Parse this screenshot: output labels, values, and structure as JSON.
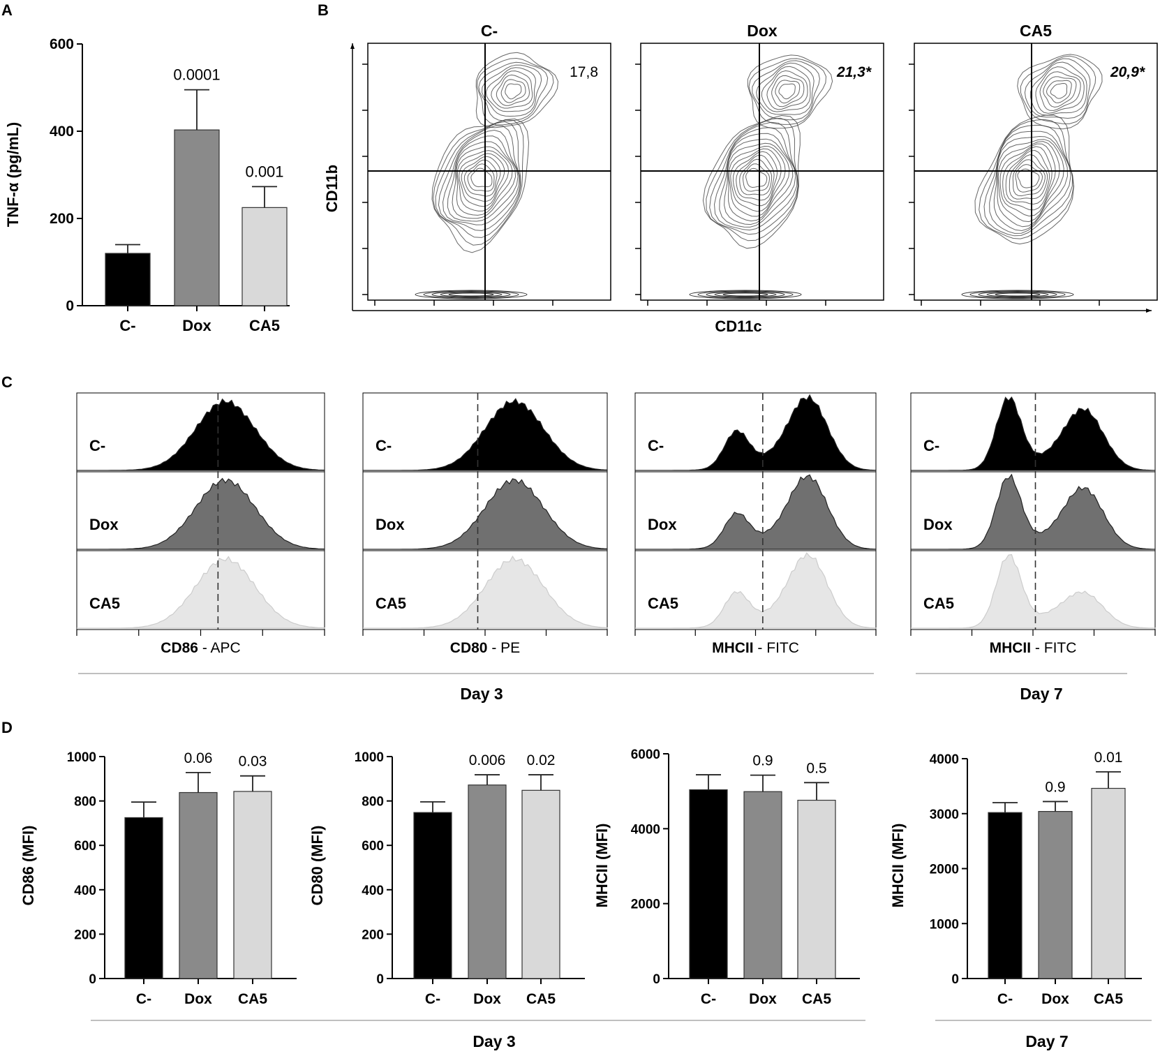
{
  "panel_labels": [
    "A",
    "B",
    "C",
    "D"
  ],
  "colors": {
    "cneg": "#000000",
    "dox": "#8a8a8a",
    "ca5": "#d9d9d9",
    "dox_flow": "#707070",
    "ca5_flow": "#e6e6e6"
  },
  "chart_data": [
    {
      "id": "A",
      "type": "bar",
      "title": "",
      "categories": [
        "C-",
        "Dox",
        "CA5"
      ],
      "values": [
        120,
        403,
        225
      ],
      "errors": [
        20,
        92,
        48
      ],
      "annotations": [
        "",
        "0.0001",
        "0.001"
      ],
      "ylabel": "TNF-α (pg/mL)",
      "xlabel": "",
      "ylim": [
        0,
        600
      ],
      "yticks": [
        0,
        200,
        400,
        600
      ],
      "ytick_labels": [
        "0",
        "200",
        "400",
        "600"
      ]
    },
    {
      "id": "B",
      "type": "contour",
      "panels": [
        {
          "title": "C-",
          "quadrant_value": "17,8",
          "italic": false
        },
        {
          "title": "Dox",
          "quadrant_value": "21,3*",
          "italic": true
        },
        {
          "title": "CA5",
          "quadrant_value": "20,9*",
          "italic": true
        }
      ],
      "xlabel": "CD11c",
      "ylabel": "CD11b"
    },
    {
      "id": "C",
      "type": "histogram",
      "rows": [
        "C-",
        "Dox",
        "CA5"
      ],
      "panels": [
        {
          "marker_bold": "CD86",
          "marker_rest": " - APC"
        },
        {
          "marker_bold": "CD80",
          "marker_rest": " - PE"
        },
        {
          "marker_bold": "MHCII",
          "marker_rest": " - FITC"
        },
        {
          "marker_bold": "MHCII",
          "marker_rest": " - FITC"
        }
      ],
      "group_labels": [
        "Day 3",
        "Day 7"
      ]
    },
    {
      "id": "D1",
      "type": "bar",
      "categories": [
        "C-",
        "Dox",
        "CA5"
      ],
      "values": [
        725,
        838,
        843
      ],
      "errors": [
        70,
        90,
        70
      ],
      "annotations": [
        "",
        "0.06",
        "0.03"
      ],
      "ylabel": "CD86 (MFI)",
      "ylim": [
        0,
        1000
      ],
      "yticks": [
        0,
        200,
        400,
        600,
        800,
        1000
      ],
      "ytick_labels": [
        "0",
        "200",
        "400",
        "600",
        "800",
        "1000"
      ]
    },
    {
      "id": "D2",
      "type": "bar",
      "categories": [
        "C-",
        "Dox",
        "CA5"
      ],
      "values": [
        748,
        872,
        848
      ],
      "errors": [
        48,
        46,
        70
      ],
      "annotations": [
        "",
        "0.006",
        "0.02"
      ],
      "ylabel": "CD80 (MFI)",
      "ylim": [
        0,
        1000
      ],
      "yticks": [
        0,
        200,
        400,
        600,
        800,
        1000
      ],
      "ytick_labels": [
        "0",
        "200",
        "400",
        "600",
        "800",
        "1000"
      ]
    },
    {
      "id": "D3",
      "type": "bar",
      "categories": [
        "C-",
        "Dox",
        "CA5"
      ],
      "values": [
        5040,
        4990,
        4760
      ],
      "errors": [
        400,
        440,
        470
      ],
      "annotations": [
        "",
        "0.9",
        "0.5"
      ],
      "ylabel": "MHCII (MFI)",
      "ylim": [
        0,
        6000
      ],
      "yticks": [
        0,
        2000,
        4000,
        6000
      ],
      "ytick_labels": [
        "0",
        "2000",
        "4000",
        "6000"
      ]
    },
    {
      "id": "D4",
      "type": "bar",
      "categories": [
        "C-",
        "Dox",
        "CA5"
      ],
      "values": [
        3020,
        3040,
        3460
      ],
      "errors": [
        180,
        180,
        300
      ],
      "annotations": [
        "",
        "0.9",
        "0.01"
      ],
      "ylabel": "MHCII (MFI)",
      "ylim": [
        0,
        4000
      ],
      "yticks": [
        0,
        1000,
        2000,
        3000,
        4000
      ],
      "ytick_labels": [
        "0",
        "1000",
        "2000",
        "3000",
        "4000"
      ]
    }
  ],
  "day_labels": {
    "c_day3": "Day 3",
    "c_day7": "Day 7",
    "d_day3": "Day 3",
    "d_day7": "Day 7"
  }
}
